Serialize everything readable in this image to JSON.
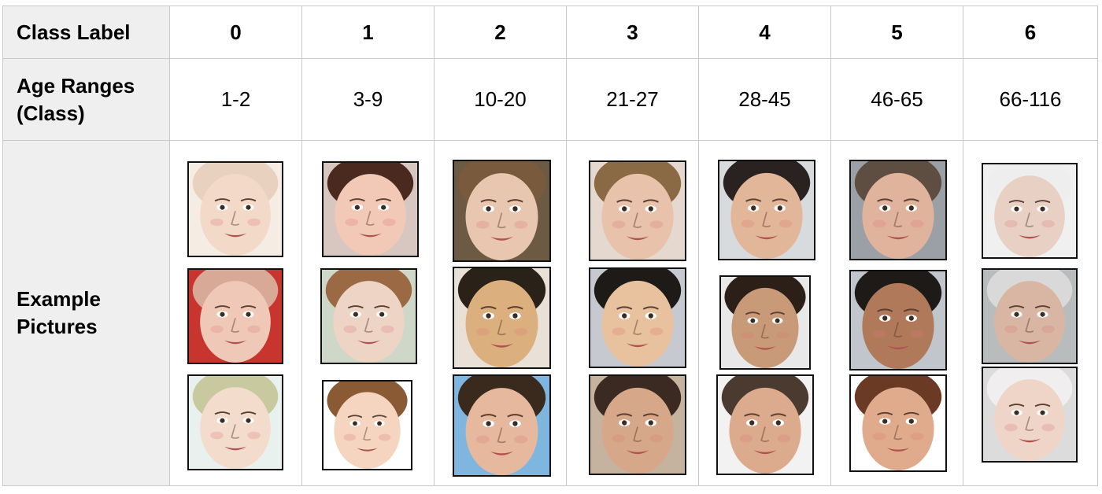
{
  "table": {
    "header_col": {
      "class_label": "Class Label",
      "age_ranges_line1": "Age Ranges",
      "age_ranges_line2": "(Class)",
      "example_line1": "Example",
      "example_line2": "Pictures"
    },
    "classes": [
      "0",
      "1",
      "2",
      "3",
      "4",
      "5",
      "6"
    ],
    "age_ranges": [
      "1-2",
      "3-9",
      "10-20",
      "21-27",
      "28-45",
      "46-65",
      "66-116"
    ]
  },
  "pictures": [
    {
      "class": "0",
      "faces": [
        {
          "skin": "#f2d9c8",
          "hair": "#e8d2bf",
          "bg": "#f5ece3"
        },
        {
          "skin": "#f0c8b8",
          "hair": "#d9a997",
          "bg": "#c8352f"
        },
        {
          "skin": "#f3dccb",
          "hair": "#c9c9a0",
          "bg": "#e9f1ef"
        }
      ]
    },
    {
      "class": "1",
      "faces": [
        {
          "skin": "#f1c9b6",
          "hair": "#4a2a1f",
          "bg": "#d8c7c0"
        },
        {
          "skin": "#eed4c4",
          "hair": "#9b6a45",
          "bg": "#cfd7c8"
        },
        {
          "skin": "#f5d5c0",
          "hair": "#8a5a34",
          "bg": "#ffffff"
        }
      ]
    },
    {
      "class": "2",
      "faces": [
        {
          "skin": "#e9c6b0",
          "hair": "#7a5a3c",
          "bg": "#6d5a44"
        },
        {
          "skin": "#dcb07e",
          "hair": "#2a2218",
          "bg": "#e9e0d8"
        },
        {
          "skin": "#e6b89e",
          "hair": "#3a2a1e",
          "bg": "#7fb6e0"
        }
      ]
    },
    {
      "class": "3",
      "faces": [
        {
          "skin": "#e8c2aa",
          "hair": "#8a6a45",
          "bg": "#e5d8ce"
        },
        {
          "skin": "#e8c19e",
          "hair": "#1d1a18",
          "bg": "#c6c9cf"
        },
        {
          "skin": "#d6a889",
          "hair": "#3b2a22",
          "bg": "#c5b39f"
        }
      ]
    },
    {
      "class": "4",
      "faces": [
        {
          "skin": "#e2b699",
          "hair": "#2a2220",
          "bg": "#d7dbdd"
        },
        {
          "skin": "#c89a78",
          "hair": "#2b1f18",
          "bg": "#e8e8e8"
        },
        {
          "skin": "#dcab8e",
          "hair": "#4a3a30",
          "bg": "#f2f2f2"
        }
      ]
    },
    {
      "class": "5",
      "faces": [
        {
          "skin": "#e0b39c",
          "hair": "#5e4d41",
          "bg": "#9aa0a5"
        },
        {
          "skin": "#b07a5a",
          "hair": "#1e1a18",
          "bg": "#c0c6cc"
        },
        {
          "skin": "#e0ab8d",
          "hair": "#6a3a24",
          "bg": "#ffffff"
        }
      ]
    },
    {
      "class": "6",
      "faces": [
        {
          "skin": "#e8d1c4",
          "hair": "#eeeeee",
          "bg": "#f0f0f0"
        },
        {
          "skin": "#d8b6a3",
          "hair": "#d9d9d9",
          "bg": "#b9bcbc"
        },
        {
          "skin": "#efd4c8",
          "hair": "#f0eeee",
          "bg": "#dcdcdc"
        }
      ]
    }
  ]
}
